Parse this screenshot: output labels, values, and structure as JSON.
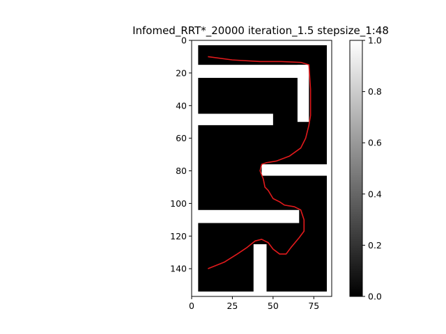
{
  "chart_data": {
    "type": "heatmap",
    "title": "Infomed_RRT*_20000 iteration_1.5 stepsize_1:48",
    "xlabel": "",
    "ylabel": "",
    "colormap": "gray",
    "xlim": [
      0,
      86
    ],
    "ylim": [
      157,
      0
    ],
    "x_ticks": [
      "0",
      "25",
      "50",
      "75"
    ],
    "x_tick_values": [
      0,
      25,
      50,
      75
    ],
    "y_ticks": [
      "0",
      "20",
      "40",
      "60",
      "80",
      "100",
      "120",
      "140"
    ],
    "y_tick_values": [
      0,
      20,
      40,
      60,
      80,
      100,
      120,
      140
    ],
    "colorbar": {
      "range": [
        0.0,
        1.0
      ],
      "ticks": [
        "0.0",
        "0.2",
        "0.4",
        "0.6",
        "0.8",
        "1.0"
      ],
      "tick_values": [
        0.0,
        0.2,
        0.4,
        0.6,
        0.8,
        1.0
      ]
    },
    "free_space_value": 1.0,
    "obstacle_value": 0.0,
    "free_regions": [
      [
        0,
        0,
        86,
        3
      ],
      [
        0,
        0,
        4,
        157
      ],
      [
        83,
        0,
        86,
        157
      ],
      [
        0,
        154,
        86,
        157
      ],
      [
        3,
        15,
        71,
        23
      ],
      [
        65,
        15,
        72,
        50
      ],
      [
        3,
        45,
        50,
        52
      ],
      [
        43,
        76,
        84,
        83
      ],
      [
        3,
        104,
        66,
        112
      ],
      [
        38,
        125,
        46,
        157
      ]
    ],
    "path_color": "#e31a1c",
    "path": [
      [
        10,
        10
      ],
      [
        25,
        12
      ],
      [
        42,
        13
      ],
      [
        55,
        13
      ],
      [
        67,
        13.5
      ],
      [
        72,
        15
      ],
      [
        73,
        30
      ],
      [
        73,
        46
      ],
      [
        72,
        52
      ],
      [
        70,
        60
      ],
      [
        67,
        66
      ],
      [
        60,
        71
      ],
      [
        52,
        74
      ],
      [
        46,
        75
      ],
      [
        43,
        76
      ],
      [
        42,
        80
      ],
      [
        44,
        85
      ],
      [
        45,
        90
      ],
      [
        47,
        92
      ],
      [
        50,
        97
      ],
      [
        54,
        99
      ],
      [
        57,
        101
      ],
      [
        63,
        102
      ],
      [
        67,
        104
      ],
      [
        69,
        110
      ],
      [
        69,
        117
      ],
      [
        66,
        121
      ],
      [
        61,
        127
      ],
      [
        58,
        131
      ],
      [
        54,
        131
      ],
      [
        50,
        128
      ],
      [
        47,
        124
      ],
      [
        43,
        122
      ],
      [
        39,
        123
      ],
      [
        34,
        127
      ],
      [
        28,
        131
      ],
      [
        20,
        136
      ],
      [
        10,
        140
      ]
    ]
  }
}
